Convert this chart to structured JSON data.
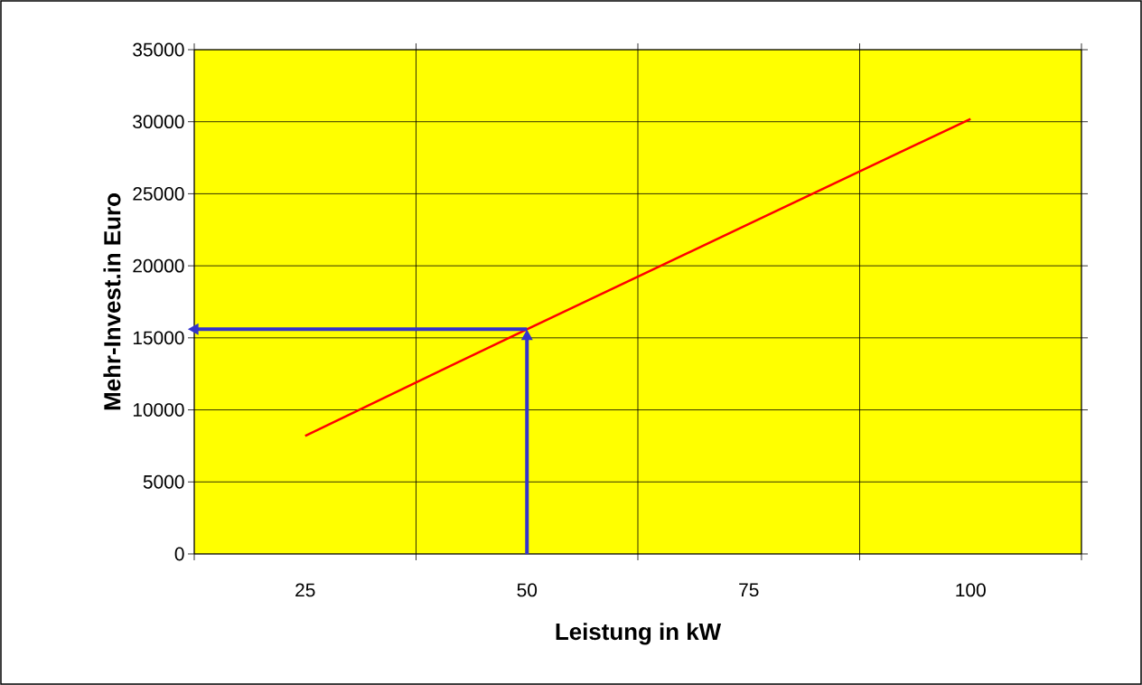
{
  "chart_data": {
    "type": "line",
    "categories": [
      "25",
      "50",
      "75",
      "100"
    ],
    "series": [
      {
        "color": "#ff0000",
        "values": [
          8200,
          15600,
          22900,
          30200
        ]
      }
    ],
    "xlabel": "Leistung in kW",
    "ylabel": "Mehr-Invest.in Euro",
    "ylim": [
      0,
      35000
    ],
    "yticks": [
      0,
      5000,
      10000,
      15000,
      20000,
      25000,
      30000,
      35000
    ],
    "grid": true,
    "marker": "none",
    "line_style": "solid"
  }
}
